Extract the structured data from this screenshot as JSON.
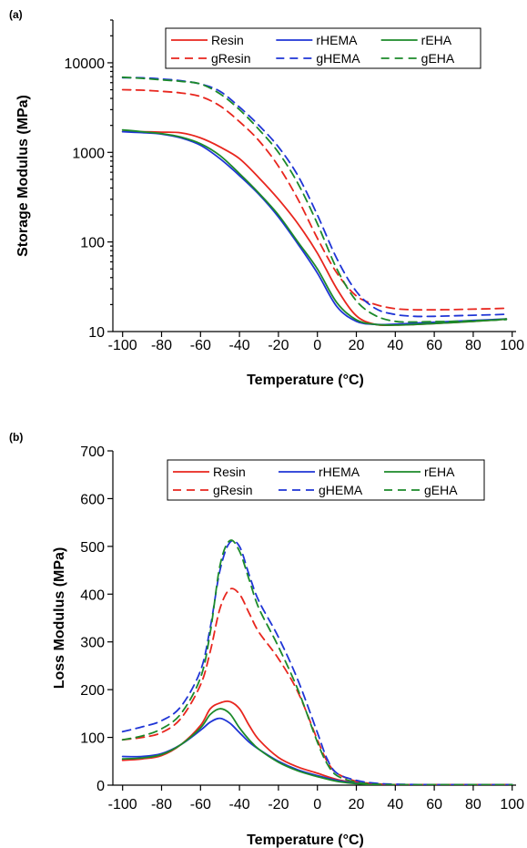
{
  "chart_data": [
    {
      "panel_label": "(a)",
      "type": "line",
      "title": "",
      "xlabel": "Temperature (°C)",
      "ylabel": "Storage Modulus (MPa)",
      "xlim": [
        -105,
        102
      ],
      "ylim": [
        10,
        30000
      ],
      "yscale": "log",
      "xticks": [
        -100,
        -80,
        -60,
        -40,
        -20,
        0,
        20,
        40,
        60,
        80,
        100
      ],
      "xtick_labels": [
        "-100",
        "-80",
        "-60",
        "-40",
        "-20",
        "0",
        "20",
        "40",
        "60",
        "80",
        "100"
      ],
      "yticks": [
        10,
        100,
        1000,
        10000
      ],
      "ytick_labels": [
        "10",
        "100",
        "1000",
        "10000"
      ],
      "grid": false,
      "legend_position": "top-center",
      "series": [
        {
          "name": "Resin",
          "color": "#e8261e",
          "dash": "solid",
          "x": [
            -100,
            -90,
            -80,
            -70,
            -60,
            -50,
            -40,
            -30,
            -20,
            -10,
            0,
            10,
            20,
            30,
            40,
            50,
            60,
            70,
            80,
            90,
            97
          ],
          "y": [
            1700,
            1700,
            1680,
            1650,
            1450,
            1150,
            850,
            520,
            300,
            160,
            75,
            30,
            15,
            12,
            11.8,
            12,
            12.3,
            12.6,
            13,
            13.4,
            13.8
          ]
        },
        {
          "name": "rHEMA",
          "color": "#1f35d6",
          "dash": "solid",
          "x": [
            -100,
            -90,
            -80,
            -70,
            -60,
            -50,
            -40,
            -30,
            -20,
            -10,
            0,
            10,
            20,
            30,
            40,
            50,
            60,
            70,
            80,
            90,
            97
          ],
          "y": [
            1700,
            1660,
            1600,
            1450,
            1200,
            850,
            550,
            340,
            190,
            95,
            45,
            19,
            13,
            12,
            12.1,
            12.4,
            12.7,
            13,
            13.3,
            13.6,
            13.8
          ]
        },
        {
          "name": "rEHA",
          "color": "#1c8a2a",
          "dash": "solid",
          "x": [
            -100,
            -90,
            -80,
            -70,
            -60,
            -50,
            -40,
            -30,
            -20,
            -10,
            0,
            10,
            20,
            30,
            40,
            50,
            60,
            70,
            80,
            90,
            97
          ],
          "y": [
            1780,
            1700,
            1620,
            1480,
            1250,
            920,
            580,
            350,
            200,
            100,
            50,
            21,
            13.5,
            12,
            11.8,
            12,
            12.3,
            12.6,
            13,
            13.4,
            13.8
          ]
        },
        {
          "name": "gResin",
          "color": "#e8261e",
          "dash": "dashed",
          "x": [
            -100,
            -90,
            -80,
            -70,
            -60,
            -50,
            -40,
            -30,
            -20,
            -10,
            0,
            10,
            20,
            30,
            40,
            50,
            60,
            70,
            80,
            90,
            97
          ],
          "y": [
            5000,
            4950,
            4800,
            4600,
            4200,
            3300,
            2200,
            1350,
            700,
            300,
            110,
            45,
            25,
            20,
            18,
            17.5,
            17.5,
            17.6,
            17.8,
            18,
            18.2
          ]
        },
        {
          "name": "gHEMA",
          "color": "#1f35d6",
          "dash": "dashed",
          "x": [
            -100,
            -90,
            -80,
            -70,
            -60,
            -50,
            -40,
            -30,
            -20,
            -10,
            0,
            10,
            20,
            30,
            40,
            50,
            60,
            70,
            80,
            90,
            97
          ],
          "y": [
            6800,
            6800,
            6600,
            6300,
            5800,
            4800,
            3200,
            2000,
            1150,
            550,
            200,
            65,
            28,
            18,
            15.5,
            14.8,
            14.8,
            15,
            15.2,
            15.4,
            15.6
          ]
        },
        {
          "name": "gEHA",
          "color": "#1c8a2a",
          "dash": "dashed",
          "x": [
            -100,
            -90,
            -80,
            -70,
            -60,
            -50,
            -40,
            -30,
            -20,
            -10,
            0,
            10,
            20,
            30,
            40,
            50,
            60,
            70,
            80,
            90,
            97
          ],
          "y": [
            6900,
            6700,
            6450,
            6200,
            5800,
            4500,
            3000,
            1800,
            1000,
            450,
            160,
            50,
            22,
            15,
            13,
            12.8,
            12.9,
            13,
            13.2,
            13.4,
            13.6
          ]
        }
      ]
    },
    {
      "panel_label": "(b)",
      "type": "line",
      "title": "",
      "xlabel": "Temperature (°C)",
      "ylabel": "Loss Modulus (MPa)",
      "xlim": [
        -105,
        102
      ],
      "ylim": [
        0,
        700
      ],
      "yscale": "linear",
      "xticks": [
        -100,
        -80,
        -60,
        -40,
        -20,
        0,
        20,
        40,
        60,
        80,
        100
      ],
      "xtick_labels": [
        "-100",
        "-80",
        "-60",
        "-40",
        "-20",
        "0",
        "20",
        "40",
        "60",
        "80",
        "100"
      ],
      "yticks": [
        0,
        100,
        200,
        300,
        400,
        500,
        600,
        700
      ],
      "ytick_labels": [
        "0",
        "100",
        "200",
        "300",
        "400",
        "500",
        "600",
        "700"
      ],
      "grid": false,
      "legend_position": "top-center",
      "series": [
        {
          "name": "Resin",
          "color": "#e8261e",
          "dash": "solid",
          "x": [
            -100,
            -90,
            -80,
            -70,
            -60,
            -55,
            -50,
            -45,
            -40,
            -35,
            -30,
            -20,
            -10,
            0,
            10,
            20,
            30,
            40,
            60,
            80,
            100
          ],
          "y": [
            52,
            55,
            62,
            85,
            125,
            160,
            172,
            175,
            160,
            125,
            95,
            58,
            38,
            25,
            12,
            5,
            2,
            1,
            1,
            1,
            1
          ]
        },
        {
          "name": "rHEMA",
          "color": "#1f35d6",
          "dash": "solid",
          "x": [
            -100,
            -90,
            -80,
            -70,
            -60,
            -55,
            -50,
            -45,
            -40,
            -35,
            -30,
            -20,
            -10,
            0,
            10,
            20,
            30,
            40,
            60,
            80,
            100
          ],
          "y": [
            60,
            60,
            66,
            85,
            115,
            132,
            140,
            130,
            110,
            90,
            75,
            50,
            32,
            20,
            10,
            4,
            2,
            1,
            1,
            1,
            1
          ]
        },
        {
          "name": "rEHA",
          "color": "#1c8a2a",
          "dash": "solid",
          "x": [
            -100,
            -90,
            -80,
            -70,
            -60,
            -55,
            -50,
            -45,
            -40,
            -35,
            -30,
            -20,
            -10,
            0,
            10,
            20,
            30,
            40,
            60,
            80,
            100
          ],
          "y": [
            55,
            57,
            64,
            85,
            120,
            148,
            160,
            150,
            120,
            95,
            75,
            48,
            30,
            18,
            8,
            3,
            1,
            1,
            1,
            1,
            1
          ]
        },
        {
          "name": "gResin",
          "color": "#e8261e",
          "dash": "dashed",
          "x": [
            -100,
            -90,
            -80,
            -70,
            -60,
            -55,
            -50,
            -45,
            -40,
            -35,
            -30,
            -20,
            -10,
            0,
            5,
            10,
            20,
            30,
            40,
            60,
            80,
            100
          ],
          "y": [
            95,
            100,
            110,
            140,
            210,
            280,
            370,
            410,
            400,
            360,
            320,
            265,
            195,
            95,
            50,
            25,
            8,
            3,
            1,
            1,
            1,
            1
          ]
        },
        {
          "name": "gHEMA",
          "color": "#1f35d6",
          "dash": "dashed",
          "x": [
            -100,
            -90,
            -80,
            -70,
            -60,
            -55,
            -50,
            -45,
            -40,
            -35,
            -30,
            -20,
            -10,
            0,
            5,
            10,
            20,
            30,
            40,
            60,
            80,
            100
          ],
          "y": [
            112,
            122,
            135,
            165,
            240,
            330,
            450,
            508,
            500,
            440,
            385,
            310,
            220,
            110,
            55,
            25,
            10,
            4,
            2,
            1,
            1,
            1
          ]
        },
        {
          "name": "gEHA",
          "color": "#1c8a2a",
          "dash": "dashed",
          "x": [
            -100,
            -90,
            -80,
            -70,
            -60,
            -55,
            -50,
            -45,
            -40,
            -35,
            -30,
            -20,
            -10,
            0,
            5,
            10,
            20,
            30,
            40,
            60,
            80,
            100
          ],
          "y": [
            95,
            103,
            118,
            150,
            225,
            320,
            460,
            512,
            490,
            430,
            370,
            290,
            200,
            90,
            45,
            20,
            6,
            2,
            1,
            1,
            1,
            1
          ]
        }
      ]
    }
  ]
}
